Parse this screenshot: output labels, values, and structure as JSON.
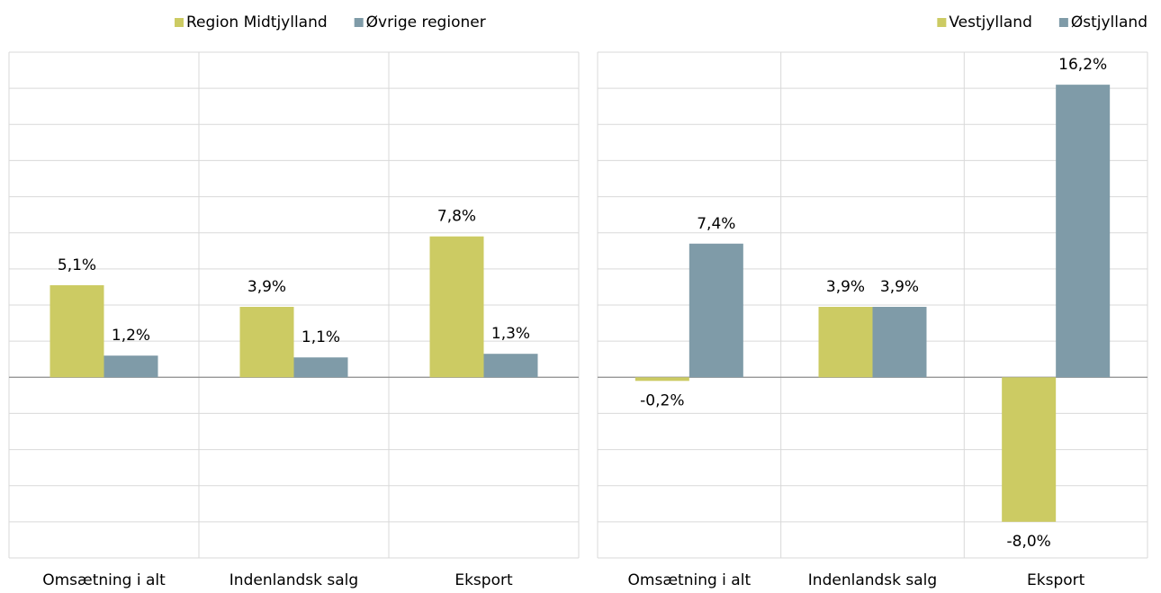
{
  "chart_data": [
    {
      "type": "bar",
      "categories": [
        "Omsætning i alt",
        "Indenlandsk salg",
        "Eksport"
      ],
      "series": [
        {
          "name": "Region Midtjylland",
          "color": "#cccb63",
          "values": [
            5.1,
            3.9,
            7.8
          ],
          "value_labels": [
            "5,1%",
            "3,9%",
            "7,8%"
          ]
        },
        {
          "name": "Øvrige regioner",
          "color": "#7f9ba8",
          "values": [
            1.2,
            1.1,
            1.3
          ],
          "value_labels": [
            "1,2%",
            "1,1%",
            "1,3%"
          ]
        }
      ],
      "ylim": [
        -10,
        18
      ],
      "yticks": [
        -10,
        -8,
        -6,
        -4,
        -2,
        0,
        2,
        4,
        6,
        8,
        10,
        12,
        14,
        16,
        18
      ],
      "grid": true,
      "legend": "top"
    },
    {
      "type": "bar",
      "categories": [
        "Omsætning i alt",
        "Indenlandsk salg",
        "Eksport"
      ],
      "series": [
        {
          "name": "Vestjylland",
          "color": "#cccb63",
          "values": [
            -0.2,
            3.9,
            -8.0
          ],
          "value_labels": [
            "-0,2%",
            "3,9%",
            "-8,0%"
          ]
        },
        {
          "name": "Østjylland",
          "color": "#7f9ba8",
          "values": [
            7.4,
            3.9,
            16.2
          ],
          "value_labels": [
            "7,4%",
            "3,9%",
            "16,2%"
          ]
        }
      ],
      "ylim": [
        -10,
        18
      ],
      "yticks": [
        -10,
        -8,
        -6,
        -4,
        -2,
        0,
        2,
        4,
        6,
        8,
        10,
        12,
        14,
        16,
        18
      ],
      "grid": true,
      "legend": "top-right"
    }
  ]
}
